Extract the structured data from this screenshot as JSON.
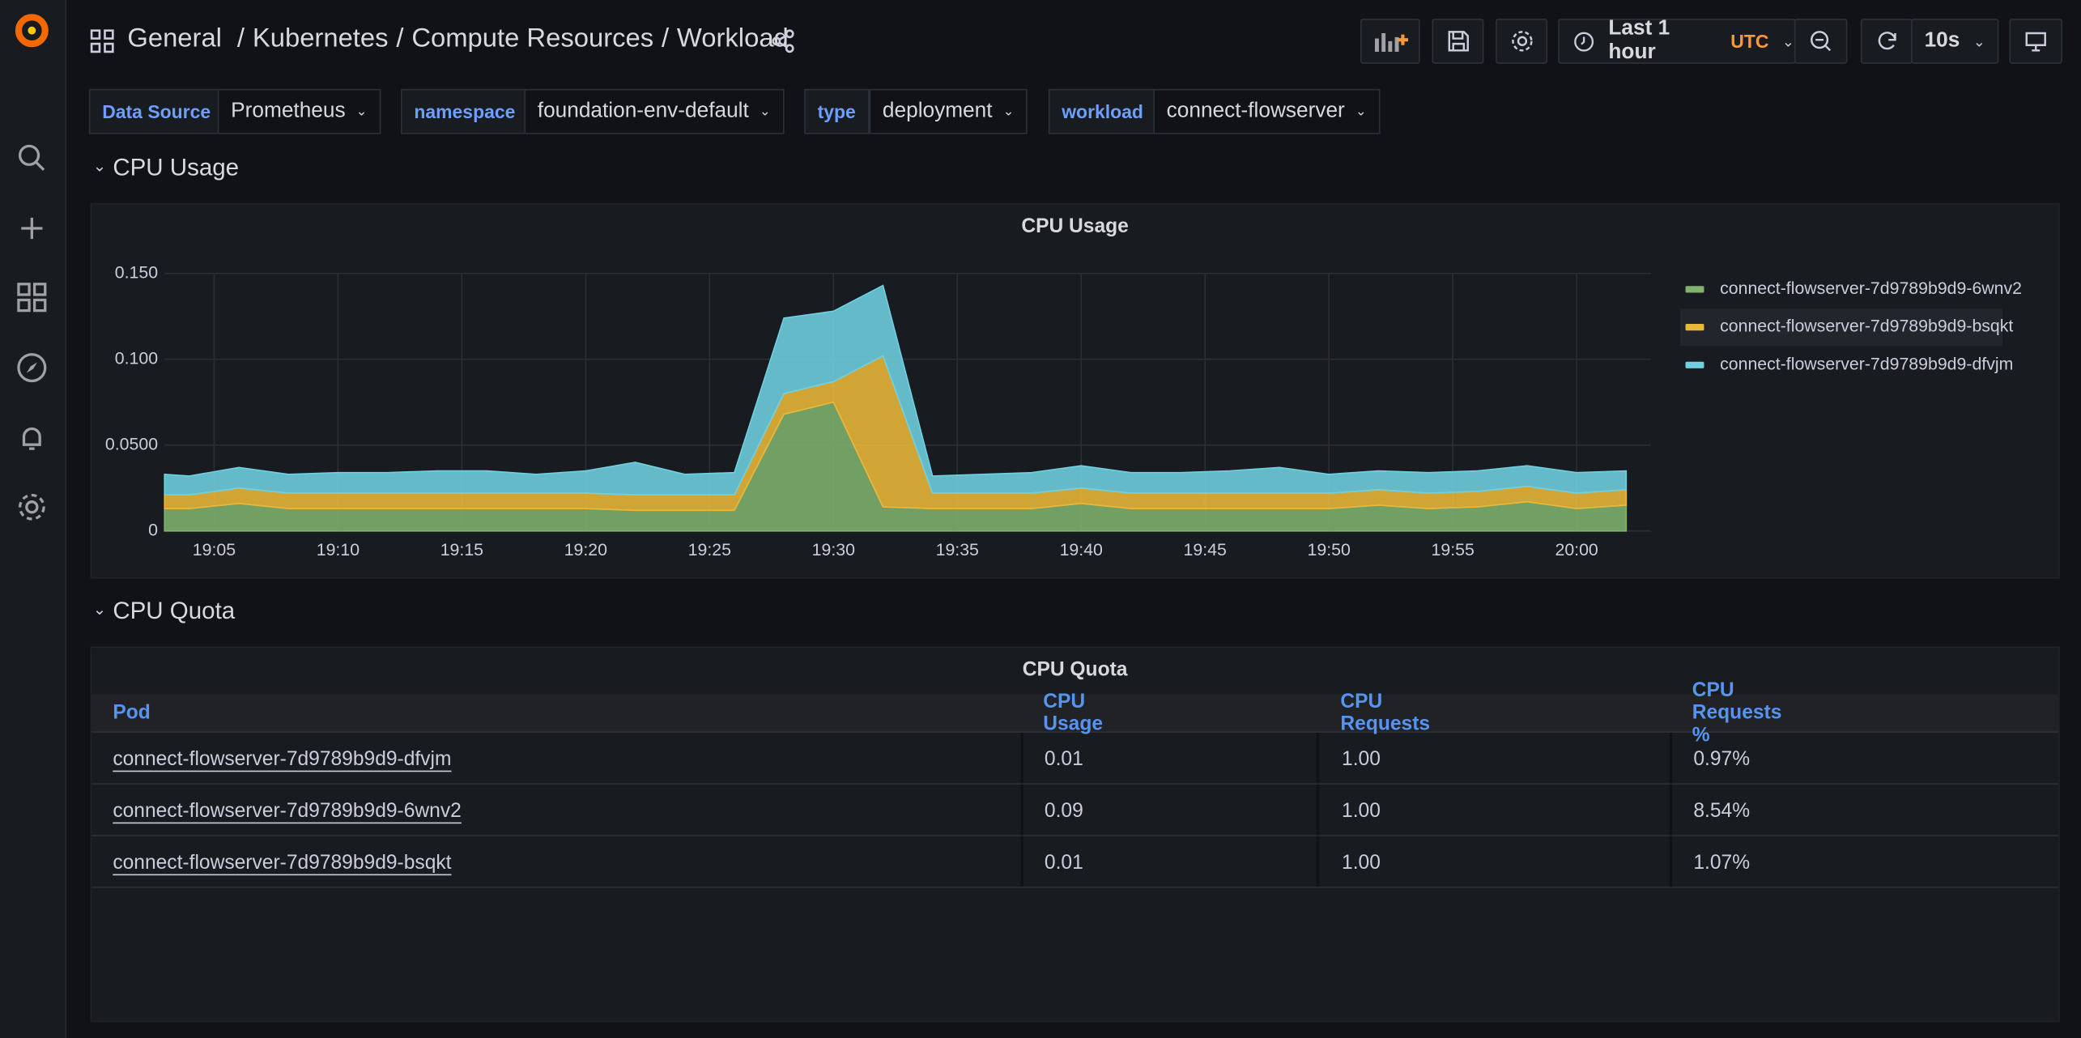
{
  "breadcrumb": [
    "General",
    "Kubernetes",
    "Compute Resources",
    "Workload"
  ],
  "time_picker": {
    "range": "Last 1 hour",
    "zone": "UTC",
    "refresh": "10s"
  },
  "variables": [
    {
      "label": "Data Source",
      "value": "Prometheus"
    },
    {
      "label": "namespace",
      "value": "foundation-env-default"
    },
    {
      "label": "type",
      "value": "deployment"
    },
    {
      "label": "workload",
      "value": "connect-flowserver"
    }
  ],
  "sections": [
    {
      "title": "CPU Usage"
    },
    {
      "title": "CPU Quota"
    }
  ],
  "chart_data": {
    "type": "area",
    "title": "CPU Usage",
    "stacked": true,
    "grid": true,
    "x": [
      "19:03",
      "19:04",
      "19:06",
      "19:08",
      "19:10",
      "19:12",
      "19:14",
      "19:16",
      "19:18",
      "19:20",
      "19:22",
      "19:24",
      "19:26",
      "19:28",
      "19:30",
      "19:32",
      "19:34",
      "19:36",
      "19:38",
      "19:40",
      "19:42",
      "19:44",
      "19:46",
      "19:48",
      "19:50",
      "19:52",
      "19:54",
      "19:56",
      "19:58",
      "20:00",
      "20:02"
    ],
    "xlim": [
      "19:03",
      "20:03"
    ],
    "xticks": [
      "19:05",
      "19:10",
      "19:15",
      "19:20",
      "19:25",
      "19:30",
      "19:35",
      "19:40",
      "19:45",
      "19:50",
      "19:55",
      "20:00"
    ],
    "ylim": [
      0,
      0.15
    ],
    "yticks": [
      0,
      {
        "value": 0.05,
        "label": "0.0500"
      },
      {
        "value": 0.1,
        "label": "0.100"
      },
      {
        "value": 0.15,
        "label": "0.150"
      }
    ],
    "legend": "right",
    "series": [
      {
        "name": "connect-flowserver-7d9789b9d9-6wnv2",
        "color": "#7eb26d",
        "values": [
          0.013,
          0.013,
          0.016,
          0.013,
          0.013,
          0.013,
          0.013,
          0.013,
          0.013,
          0.013,
          0.012,
          0.012,
          0.012,
          0.068,
          0.075,
          0.014,
          0.013,
          0.013,
          0.013,
          0.016,
          0.013,
          0.013,
          0.013,
          0.013,
          0.013,
          0.015,
          0.013,
          0.014,
          0.017,
          0.013,
          0.015
        ]
      },
      {
        "name": "connect-flowserver-7d9789b9d9-bsqkt",
        "color": "#eab839",
        "values": [
          0.008,
          0.008,
          0.009,
          0.009,
          0.009,
          0.009,
          0.009,
          0.009,
          0.009,
          0.009,
          0.009,
          0.009,
          0.009,
          0.012,
          0.012,
          0.088,
          0.009,
          0.009,
          0.009,
          0.009,
          0.009,
          0.009,
          0.009,
          0.009,
          0.009,
          0.009,
          0.009,
          0.009,
          0.009,
          0.009,
          0.009
        ]
      },
      {
        "name": "connect-flowserver-7d9789b9d9-dfvjm",
        "color": "#6ed0e0",
        "values": [
          0.012,
          0.011,
          0.012,
          0.011,
          0.012,
          0.012,
          0.013,
          0.013,
          0.011,
          0.013,
          0.019,
          0.012,
          0.013,
          0.044,
          0.041,
          0.041,
          0.01,
          0.011,
          0.012,
          0.013,
          0.012,
          0.012,
          0.013,
          0.015,
          0.011,
          0.011,
          0.012,
          0.012,
          0.012,
          0.012,
          0.011
        ]
      }
    ]
  },
  "table": {
    "title": "CPU Quota",
    "columns": [
      "Pod",
      "CPU Usage",
      "CPU Requests",
      "CPU Requests %"
    ],
    "rows": [
      [
        "connect-flowserver-7d9789b9d9-dfvjm",
        "0.01",
        "1.00",
        "0.97%"
      ],
      [
        "connect-flowserver-7d9789b9d9-6wnv2",
        "0.09",
        "1.00",
        "8.54%"
      ],
      [
        "connect-flowserver-7d9789b9d9-bsqkt",
        "0.01",
        "1.00",
        "1.07%"
      ]
    ]
  }
}
